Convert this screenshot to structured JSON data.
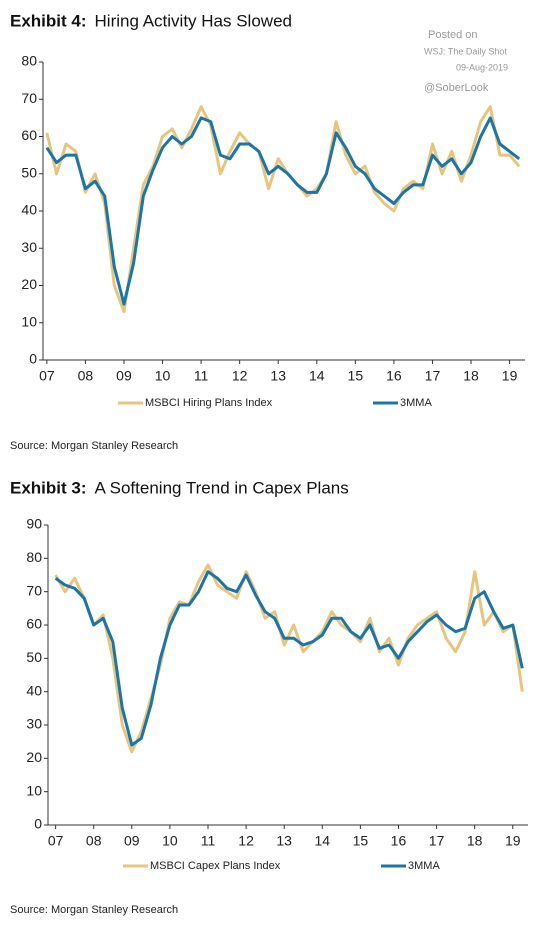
{
  "chart_data": [
    {
      "type": "line",
      "exhibit": "Exhibit 4:",
      "title": "Hiring Activity Has Slowed",
      "source": "Source: Morgan Stanley Research",
      "x": [
        7.0,
        7.25,
        7.5,
        7.75,
        8.0,
        8.25,
        8.5,
        8.75,
        9.0,
        9.25,
        9.5,
        9.75,
        10.0,
        10.25,
        10.5,
        10.75,
        11.0,
        11.25,
        11.5,
        11.75,
        12.0,
        12.25,
        12.5,
        12.75,
        13.0,
        13.25,
        13.5,
        13.75,
        14.0,
        14.25,
        14.5,
        14.75,
        15.0,
        15.25,
        15.5,
        15.75,
        16.0,
        16.25,
        16.5,
        16.75,
        17.0,
        17.25,
        17.5,
        17.75,
        18.0,
        18.25,
        18.5,
        18.75,
        19.0,
        19.25
      ],
      "series": [
        {
          "name": "MSBCI Hiring Plans Index",
          "color": "#e8c57c",
          "values": [
            61,
            50,
            58,
            56,
            45,
            50,
            42,
            20,
            13,
            30,
            47,
            52,
            60,
            62,
            57,
            62,
            68,
            63,
            50,
            56,
            61,
            58,
            56,
            46,
            54,
            50,
            47,
            44,
            46,
            50,
            64,
            55,
            50,
            52,
            45,
            42,
            40,
            46,
            48,
            46,
            58,
            50,
            56,
            48,
            55,
            64,
            68,
            55,
            55,
            52
          ]
        },
        {
          "name": "3MMA",
          "color": "#1b75a9",
          "values": [
            57,
            53,
            55,
            55,
            46,
            48,
            44,
            25,
            15,
            26,
            44,
            51,
            57,
            60,
            58,
            60,
            65,
            64,
            55,
            54,
            58,
            58,
            56,
            50,
            52,
            50,
            47,
            45,
            45,
            50,
            61,
            57,
            52,
            50,
            46,
            44,
            42,
            45,
            47,
            47,
            55,
            52,
            54,
            50,
            53,
            60,
            65,
            58,
            56,
            54
          ]
        }
      ],
      "xlim": [
        6.9,
        19.4
      ],
      "ylim": [
        0,
        80
      ],
      "xticks": [
        {
          "value": 7,
          "label": "07"
        },
        {
          "value": 8,
          "label": "08"
        },
        {
          "value": 9,
          "label": "09"
        },
        10,
        11,
        12,
        13,
        14,
        15,
        16,
        17,
        18,
        19
      ],
      "yticks": [
        0,
        10,
        20,
        30,
        40,
        50,
        60,
        70,
        80
      ]
    },
    {
      "type": "line",
      "exhibit": "Exhibit 3:",
      "title": "A Softening Trend in Capex Plans",
      "source": "Source: Morgan Stanley Research",
      "x": [
        7.0,
        7.25,
        7.5,
        7.75,
        8.0,
        8.25,
        8.5,
        8.75,
        9.0,
        9.25,
        9.5,
        9.75,
        10.0,
        10.25,
        10.5,
        10.75,
        11.0,
        11.25,
        11.5,
        11.75,
        12.0,
        12.25,
        12.5,
        12.75,
        13.0,
        13.25,
        13.5,
        13.75,
        14.0,
        14.25,
        14.5,
        14.75,
        15.0,
        15.25,
        15.5,
        15.75,
        16.0,
        16.25,
        16.5,
        16.75,
        17.0,
        17.25,
        17.5,
        17.75,
        18.0,
        18.25,
        18.5,
        18.75,
        19.0,
        19.25
      ],
      "series": [
        {
          "name": "MSBCI Capex Plans Index",
          "color": "#e8c57c",
          "values": [
            75,
            70,
            74,
            68,
            60,
            63,
            50,
            30,
            22,
            28,
            38,
            48,
            62,
            67,
            66,
            73,
            78,
            72,
            70,
            68,
            76,
            70,
            62,
            64,
            54,
            60,
            52,
            55,
            58,
            64,
            60,
            58,
            55,
            62,
            52,
            56,
            48,
            56,
            60,
            62,
            64,
            56,
            52,
            58,
            76,
            60,
            64,
            58,
            60,
            40
          ]
        },
        {
          "name": "3MMA",
          "color": "#1b75a9",
          "values": [
            74,
            72,
            71,
            68,
            60,
            62,
            55,
            35,
            24,
            26,
            36,
            50,
            60,
            66,
            66,
            70,
            76,
            74,
            71,
            70,
            75,
            69,
            64,
            62,
            56,
            56,
            54,
            55,
            57,
            62,
            62,
            58,
            56,
            60,
            53,
            54,
            50,
            55,
            58,
            61,
            63,
            60,
            58,
            59,
            68,
            70,
            64,
            59,
            60,
            47
          ]
        }
      ],
      "xlim": [
        6.8,
        19.4
      ],
      "ylim": [
        0,
        90
      ],
      "xticks": [
        {
          "value": 7,
          "label": "07"
        },
        {
          "value": 8,
          "label": "08"
        },
        {
          "value": 9,
          "label": "09"
        },
        10,
        11,
        12,
        13,
        14,
        15,
        16,
        17,
        18,
        19
      ],
      "yticks": [
        0,
        10,
        20,
        30,
        40,
        50,
        60,
        70,
        80,
        90
      ]
    }
  ],
  "annotations": [
    "Posted on",
    "WSJ: The Daily Shot",
    "09-Aug-2019",
    "@SoberLook"
  ]
}
